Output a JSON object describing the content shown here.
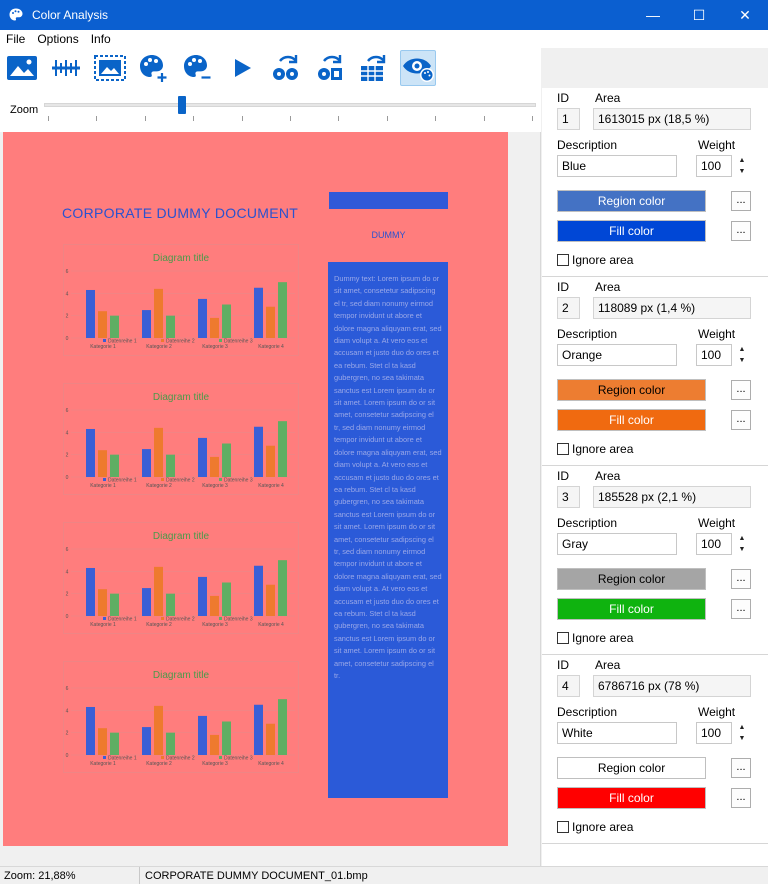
{
  "window": {
    "title": "Color Analysis",
    "minimize": "—",
    "maximize": "☐",
    "close": "✕"
  },
  "menu": {
    "file": "File",
    "options": "Options",
    "info": "Info"
  },
  "zoom": {
    "label": "Zoom",
    "position": 0.28
  },
  "document": {
    "title": "CORPORATE DUMMY DOCUMENT",
    "side_label": "DUMMY",
    "body_text": "Dummy text: Lorem ipsum do or sit amet, consetetur sadipscing el tr, sed diam nonumy eirmod tempor invidunt ut abore et dolore magna aliquyam erat, sed diam volupt a. At vero eos et accusam et justo duo do ores et ea rebum. Stet cl ta kasd gubergren, no sea takimata sanctus est Lorem ipsum do or sit amet. Lorem ipsum do or sit amet, consetetur sadipscing el tr, sed diam nonumy eirmod tempor invidunt ut abore et dolore magna aliquyam erat, sed diam volupt a. At vero eos et accusam et justo duo do ores et ea rebum. Stet cl ta kasd gubergren, no sea takimata sanctus est Lorem ipsum do or sit amet. Lorem ipsum do or sit amet, consetetur sadipscing el tr, sed diam nonumy eirmod tempor invidunt ut abore et dolore magna aliquyam erat, sed diam volupt a. At vero eos et accusam et justo duo do ores et ea rebum. Stet cl ta kasd gubergren, no sea takimata sanctus est Lorem ipsum do or sit amet. Lorem ipsum do or sit amet, consetetur sadipscing el tr."
  },
  "chart_data": [
    {
      "type": "bar",
      "title": "Diagram title",
      "categories": [
        "Kategorie 1",
        "Kategorie 2",
        "Kategorie 3",
        "Kategorie 4"
      ],
      "series": [
        {
          "name": "Datenreihe 1",
          "values": [
            4.3,
            2.5,
            3.5,
            4.5
          ]
        },
        {
          "name": "Datenreihe 2",
          "values": [
            2.4,
            4.4,
            1.8,
            2.8
          ]
        },
        {
          "name": "Datenreihe 3",
          "values": [
            2,
            2,
            3,
            5
          ]
        }
      ],
      "ylim": [
        0,
        6
      ],
      "yticks": [
        "0",
        "2",
        "4",
        "6"
      ]
    },
    {
      "type": "bar",
      "title": "Diagram title",
      "categories": [
        "Kategorie 1",
        "Kategorie 2",
        "Kategorie 3",
        "Kategorie 4"
      ],
      "series": [
        {
          "name": "Datenreihe 1",
          "values": [
            4.3,
            2.5,
            3.5,
            4.5
          ]
        },
        {
          "name": "Datenreihe 2",
          "values": [
            2.4,
            4.4,
            1.8,
            2.8
          ]
        },
        {
          "name": "Datenreihe 3",
          "values": [
            2,
            2,
            3,
            5
          ]
        }
      ],
      "ylim": [
        0,
        6
      ],
      "yticks": [
        "0",
        "2",
        "4",
        "6"
      ]
    },
    {
      "type": "bar",
      "title": "Diagram title",
      "categories": [
        "Kategorie 1",
        "Kategorie 2",
        "Kategorie 3",
        "Kategorie 4"
      ],
      "series": [
        {
          "name": "Datenreihe 1",
          "values": [
            4.3,
            2.5,
            3.5,
            4.5
          ]
        },
        {
          "name": "Datenreihe 2",
          "values": [
            2.4,
            4.4,
            1.8,
            2.8
          ]
        },
        {
          "name": "Datenreihe 3",
          "values": [
            2,
            2,
            3,
            5
          ]
        }
      ],
      "ylim": [
        0,
        6
      ],
      "yticks": [
        "0",
        "2",
        "4",
        "6"
      ]
    },
    {
      "type": "bar",
      "title": "Diagram title",
      "categories": [
        "Kategorie 1",
        "Kategorie 2",
        "Kategorie 3",
        "Kategorie 4"
      ],
      "series": [
        {
          "name": "Datenreihe 1",
          "values": [
            4.3,
            2.5,
            3.5,
            4.5
          ]
        },
        {
          "name": "Datenreihe 2",
          "values": [
            2.4,
            4.4,
            1.8,
            2.8
          ]
        },
        {
          "name": "Datenreihe 3",
          "values": [
            2,
            2,
            3,
            5
          ]
        }
      ],
      "ylim": [
        0,
        6
      ],
      "yticks": [
        "0",
        "2",
        "4",
        "6"
      ]
    }
  ],
  "chart_colors": {
    "series1": "#3a5fd6",
    "series2": "#ee7a2e",
    "series3": "#5fae63",
    "title": "#4a9a4a",
    "axis": "#e58a8a"
  },
  "regions_labels": {
    "id": "ID",
    "area": "Area",
    "description": "Description",
    "weight": "Weight",
    "region_color": "Region color",
    "fill_color": "Fill color",
    "ignore": "Ignore area",
    "more": "..."
  },
  "regions": [
    {
      "id": "1",
      "area": "1613015 px (18,5 %)",
      "description": "Blue",
      "weight": "100",
      "region_color": "#4472c4",
      "region_text_color": "#ffffff",
      "fill_color": "#0047d6",
      "fill_text_color": "#ffffff"
    },
    {
      "id": "2",
      "area": "118089 px (1,4 %)",
      "description": "Orange",
      "weight": "100",
      "region_color": "#ed7d31",
      "region_text_color": "#000000",
      "fill_color": "#f06a10",
      "fill_text_color": "#ffffff"
    },
    {
      "id": "3",
      "area": "185528 px (2,1 %)",
      "description": "Gray",
      "weight": "100",
      "region_color": "#a5a5a5",
      "region_text_color": "#000000",
      "fill_color": "#0fb30f",
      "fill_text_color": "#ffffff"
    },
    {
      "id": "4",
      "area": "6786716 px (78 %)",
      "description": "White",
      "weight": "100",
      "region_color": "#ffffff",
      "region_text_color": "#000000",
      "fill_color": "#ff0000",
      "fill_text_color": "#ffffff"
    }
  ],
  "status": {
    "zoom": "Zoom: 21,88%",
    "file": "CORPORATE DUMMY DOCUMENT_01.bmp"
  }
}
